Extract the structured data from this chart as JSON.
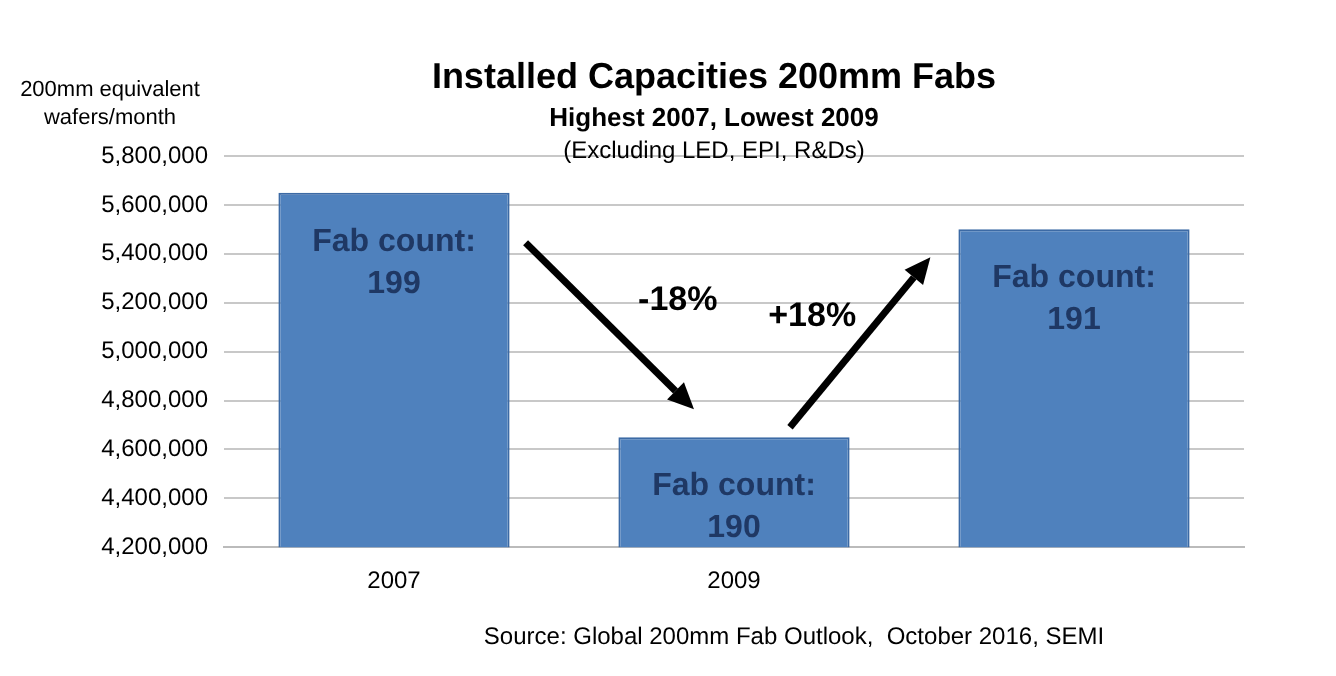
{
  "chart_data": {
    "type": "bar",
    "title": "Installed Capacities 200mm Fabs",
    "subtitle": "Highest 2007, Lowest 2009",
    "ylabel": "200mm equivalent wafers/month",
    "categories": [
      "2007",
      "2009",
      null
    ],
    "values": [
      5650000,
      4650000,
      5500000
    ],
    "color": "#4f81bd",
    "ylim": [
      4200000,
      5800000
    ],
    "yticks": [
      {
        "value": 4200000,
        "label": "4,200,000"
      },
      {
        "value": 4400000,
        "label": "4,400,000"
      },
      {
        "value": 4600000,
        "label": "4,600,000"
      },
      {
        "value": 4800000,
        "label": "4,800,000"
      },
      {
        "value": 5000000,
        "label": "5,000,000"
      },
      {
        "value": 5200000,
        "label": "5,200,000"
      },
      {
        "value": 5400000,
        "label": "5,400,000"
      },
      {
        "value": 5600000,
        "label": "5,600,000"
      },
      {
        "value": 5800000,
        "label": "5,800,000"
      }
    ],
    "grid": "y",
    "legend": false,
    "annotations": [
      "(Excluding LED, EPI, R&Ds)",
      {
        "text": "Fab count:\n199",
        "x": "2007",
        "y": 5650000
      },
      {
        "text": "Fab count:\n190",
        "x": "2009",
        "y": 4650000
      },
      {
        "text": "Fab count:\n191",
        "y": 5500000
      },
      "-18%",
      "+18%",
      "Source: Global 200mm Fab Outlook,  October 2016, SEMI"
    ]
  }
}
